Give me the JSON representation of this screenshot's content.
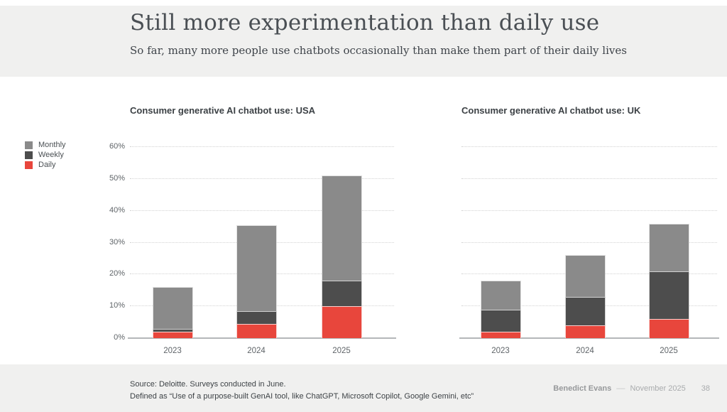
{
  "header": {
    "title": "Still more experimentation than daily use",
    "subtitle": "So far, many more people use chatbots occasionally than make them part of their daily lives"
  },
  "legend": {
    "items": [
      {
        "label": "Monthly",
        "color": "#8a8a8a"
      },
      {
        "label": "Weekly",
        "color": "#4d4d4d"
      },
      {
        "label": "Daily",
        "color": "#e8463c"
      }
    ]
  },
  "chart_data": [
    {
      "type": "bar",
      "stacked": true,
      "title": "Consumer generative AI chatbot use: USA",
      "categories": [
        "2023",
        "2024",
        "2025"
      ],
      "series": [
        {
          "name": "Monthly",
          "color": "#8a8a8a",
          "values": [
            13,
            27,
            33
          ]
        },
        {
          "name": "Weekly",
          "color": "#4d4d4d",
          "values": [
            1,
            4,
            8
          ]
        },
        {
          "name": "Daily",
          "color": "#e8463c",
          "values": [
            2,
            4.5,
            10
          ]
        }
      ],
      "totals": [
        16,
        35.5,
        51
      ],
      "ylim": [
        0,
        60
      ],
      "y_tick_step": 10,
      "y_tick_suffix": "%",
      "grid": "dotted horizontal",
      "show_y_labels": true,
      "legend_position": "far-left"
    },
    {
      "type": "bar",
      "stacked": true,
      "title": "Consumer generative AI chatbot use: UK",
      "categories": [
        "2023",
        "2024",
        "2025"
      ],
      "series": [
        {
          "name": "Monthly",
          "color": "#8a8a8a",
          "values": [
            9,
            13,
            15
          ]
        },
        {
          "name": "Weekly",
          "color": "#4d4d4d",
          "values": [
            7,
            9,
            15
          ]
        },
        {
          "name": "Daily",
          "color": "#e8463c",
          "values": [
            2,
            4,
            6
          ]
        }
      ],
      "totals": [
        18,
        26,
        36
      ],
      "ylim": [
        0,
        60
      ],
      "y_tick_step": 10,
      "y_tick_suffix": "%",
      "grid": "dotted horizontal",
      "show_y_labels": false,
      "legend_position": "shared"
    }
  ],
  "footer": {
    "source_line1": "Source: Deloitte. Surveys conducted in June.",
    "source_line2": "Defined as “Use of a purpose-built GenAI tool, like ChatGPT, Microsoft Copilot, Google Gemini, etc”",
    "author": "Benedict Evans",
    "dash": "––",
    "date": "November 2025",
    "page": "38"
  },
  "colors": {
    "band_background": "#f0f0ef",
    "grid_line": "#d2d2d2",
    "axis_line": "#b4b7b9",
    "title_text": "#4a4f54",
    "accent_red": "#e8463c"
  }
}
